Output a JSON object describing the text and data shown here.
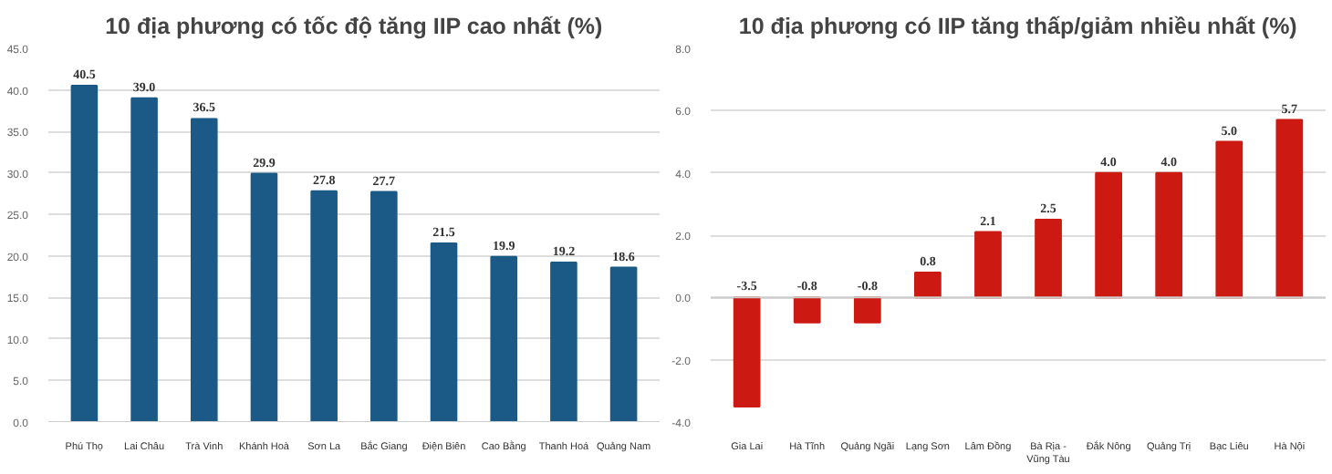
{
  "chart_data": [
    {
      "type": "bar",
      "title": "10 địa phương có tốc độ tăng IIP cao nhất (%)",
      "categories": [
        "Phú Thọ",
        "Lai Châu",
        "Trà Vinh",
        "Khánh Hoà",
        "Sơn La",
        "Bắc Giang",
        "Điện Biên",
        "Cao Bằng",
        "Thanh Hoá",
        "Quảng Nam"
      ],
      "values": [
        40.5,
        39.0,
        36.5,
        29.9,
        27.8,
        27.7,
        21.5,
        19.9,
        19.2,
        18.6
      ],
      "value_labels": [
        "40.5",
        "39.0",
        "36.5",
        "29.9",
        "27.8",
        "27.7",
        "21.5",
        "19.9",
        "19.2",
        "18.6"
      ],
      "color": "#1b5a86",
      "grid": "y",
      "ylim": [
        0,
        45
      ],
      "yticks": [
        {
          "value": 0,
          "label": "0.0"
        },
        {
          "value": 5,
          "label": "5.0"
        },
        {
          "value": 10,
          "label": "10.0"
        },
        {
          "value": 15,
          "label": "15.0"
        },
        {
          "value": 20,
          "label": "20.0"
        },
        {
          "value": 25,
          "label": "25.0"
        },
        {
          "value": 30,
          "label": "30.0"
        },
        {
          "value": 35,
          "label": "35.0"
        },
        {
          "value": 40,
          "label": "40.0"
        },
        {
          "value": 45,
          "label": "45.0"
        }
      ]
    },
    {
      "type": "bar",
      "title": "10 địa phương có IIP tăng thấp/giảm nhiều nhất (%)",
      "categories": [
        "Gia Lai",
        "Hà Tĩnh",
        "Quảng Ngãi",
        "Lạng Sơn",
        "Lâm Đồng",
        "Bà Rịa -\nVũng Tàu",
        "Đắk Nông",
        "Quảng Trị",
        "Bạc Liêu",
        "Hà Nội"
      ],
      "values": [
        -3.5,
        -0.8,
        -0.8,
        0.8,
        2.1,
        2.5,
        4.0,
        4.0,
        5.0,
        5.7
      ],
      "value_labels": [
        "-3.5",
        "-0.8",
        "-0.8",
        "0.8",
        "2.1",
        "2.5",
        "4.0",
        "4.0",
        "5.0",
        "5.7"
      ],
      "color": "#cc1a12",
      "grid": "y",
      "ylim": [
        -4,
        8
      ],
      "yticks": [
        {
          "value": -4,
          "label": "-4.0"
        },
        {
          "value": -2,
          "label": "-2.0"
        },
        {
          "value": 0,
          "label": "0.0"
        },
        {
          "value": 2,
          "label": "2.0"
        },
        {
          "value": 4,
          "label": "4.0"
        },
        {
          "value": 6,
          "label": "6.0"
        },
        {
          "value": 8,
          "label": "8.0"
        }
      ]
    }
  ]
}
